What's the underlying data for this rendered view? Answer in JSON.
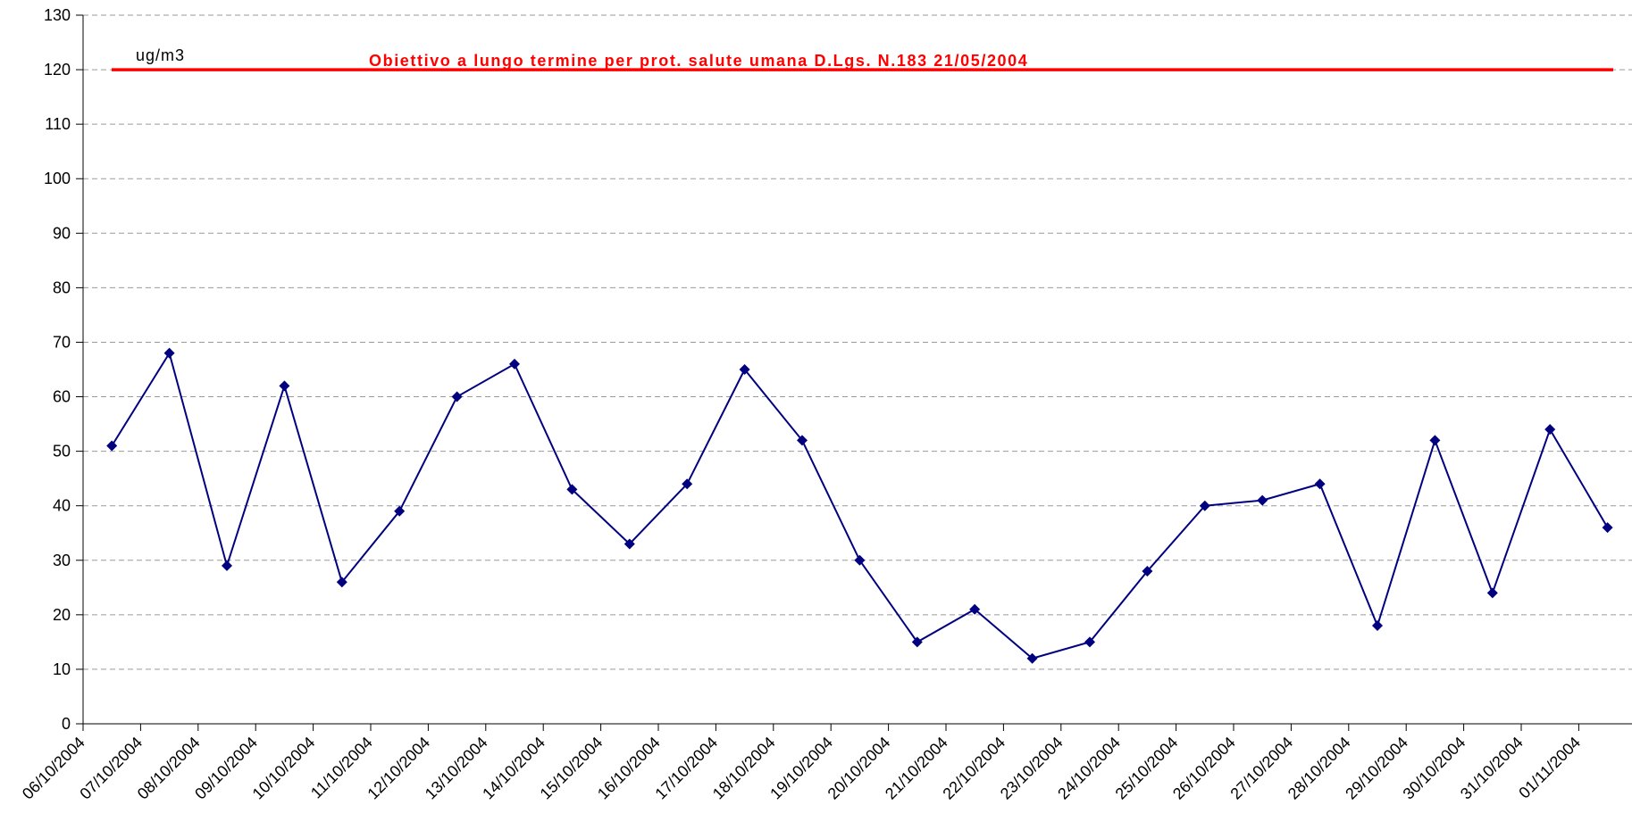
{
  "chart_data": {
    "type": "line",
    "categories": [
      "06/10/2004",
      "07/10/2004",
      "08/10/2004",
      "09/10/2004",
      "10/10/2004",
      "11/10/2004",
      "12/10/2004",
      "13/10/2004",
      "14/10/2004",
      "15/10/2004",
      "16/10/2004",
      "17/10/2004",
      "18/10/2004",
      "19/10/2004",
      "20/10/2004",
      "21/10/2004",
      "22/10/2004",
      "23/10/2004",
      "24/10/2004",
      "25/10/2004",
      "26/10/2004",
      "27/10/2004",
      "28/10/2004",
      "29/10/2004",
      "30/10/2004",
      "31/10/2004",
      "01/11/2004"
    ],
    "series": [
      {
        "values": [
          51,
          68,
          29,
          62,
          26,
          39,
          60,
          66,
          43,
          33,
          44,
          65,
          52,
          30,
          15,
          21,
          12,
          15,
          28,
          40,
          41,
          44,
          18,
          52,
          24,
          54,
          36
        ]
      }
    ],
    "reference_line": {
      "value": 120,
      "label": "Obiettivo a lungo termine per prot. salute umana D.Lgs. N.183 21/05/2004"
    },
    "unit_label": "ug/m3",
    "ylim": [
      0,
      130
    ],
    "yticks": [
      0,
      10,
      20,
      30,
      40,
      50,
      60,
      70,
      80,
      90,
      100,
      110,
      120,
      130
    ],
    "grid": "horizontal-dashed",
    "colors": {
      "series": "#000080",
      "reference": "#ff0000",
      "grid": "#9a9a9a",
      "axis": "#000000"
    }
  }
}
